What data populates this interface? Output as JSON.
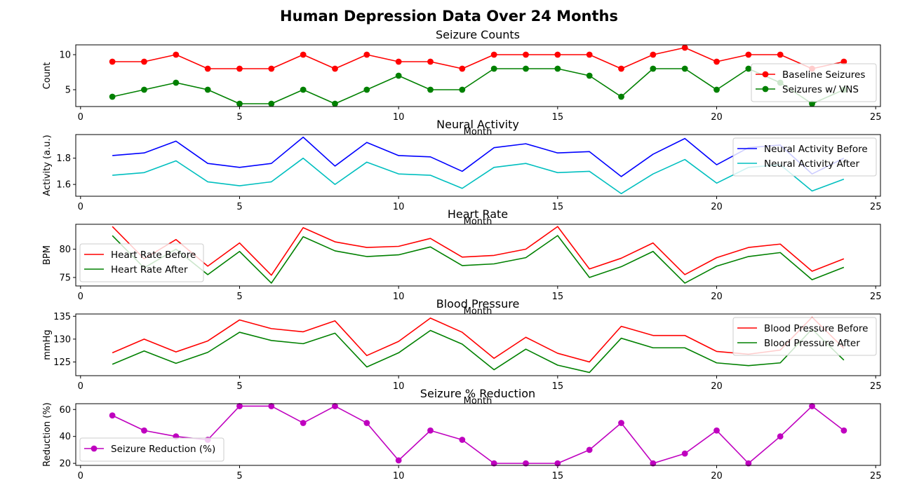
{
  "figure": {
    "title": "Human Depression Data Over 24 Months"
  },
  "chart_data": [
    {
      "type": "line",
      "title": "Seizure Counts",
      "xlabel": "Month",
      "ylabel": "Count",
      "xlim": [
        -0.15,
        25.15
      ],
      "ylim": [
        2.6,
        11.4
      ],
      "xticks": [
        0,
        5,
        10,
        15,
        20,
        25
      ],
      "yticks": [
        5,
        10
      ],
      "legend": "right",
      "x": [
        1,
        2,
        3,
        4,
        5,
        6,
        7,
        8,
        9,
        10,
        11,
        12,
        13,
        14,
        15,
        16,
        17,
        18,
        19,
        20,
        21,
        22,
        23,
        24
      ],
      "series": [
        {
          "name": "Baseline Seizures",
          "color": "#ff0000",
          "marker": "circle",
          "values": [
            9,
            9,
            10,
            8,
            8,
            8,
            10,
            8,
            10,
            9,
            9,
            8,
            10,
            10,
            10,
            10,
            8,
            10,
            11,
            9,
            10,
            10,
            8,
            9
          ]
        },
        {
          "name": "Seizures w/ VNS",
          "color": "#008000",
          "marker": "circle",
          "values": [
            4,
            5,
            6,
            5,
            3,
            3,
            5,
            3,
            5,
            7,
            5,
            5,
            8,
            8,
            8,
            7,
            4,
            8,
            8,
            5,
            8,
            6,
            3,
            5
          ]
        }
      ]
    },
    {
      "type": "line",
      "title": "Neural Activity",
      "xlabel": "Month",
      "ylabel": "Activity (a.u.)",
      "xlim": [
        -0.15,
        25.15
      ],
      "ylim": [
        1.51,
        1.98
      ],
      "xticks": [
        0,
        5,
        10,
        15,
        20,
        25
      ],
      "yticks": [
        1.6,
        1.8
      ],
      "legend": "top-right",
      "x": [
        1,
        2,
        3,
        4,
        5,
        6,
        7,
        8,
        9,
        10,
        11,
        12,
        13,
        14,
        15,
        16,
        17,
        18,
        19,
        20,
        21,
        22,
        23,
        24
      ],
      "series": [
        {
          "name": "Neural Activity Before",
          "color": "#0000ff",
          "marker": "none",
          "values": [
            1.82,
            1.84,
            1.93,
            1.76,
            1.73,
            1.76,
            1.96,
            1.74,
            1.92,
            1.82,
            1.81,
            1.7,
            1.88,
            1.91,
            1.84,
            1.85,
            1.66,
            1.83,
            1.95,
            1.75,
            1.88,
            1.9,
            1.68,
            1.8
          ]
        },
        {
          "name": "Neural Activity After",
          "color": "#00bfbf",
          "marker": "none",
          "values": [
            1.67,
            1.69,
            1.78,
            1.62,
            1.59,
            1.62,
            1.8,
            1.6,
            1.77,
            1.68,
            1.67,
            1.57,
            1.73,
            1.76,
            1.69,
            1.7,
            1.53,
            1.68,
            1.79,
            1.61,
            1.73,
            1.75,
            1.55,
            1.64
          ]
        }
      ]
    },
    {
      "type": "line",
      "title": "Heart Rate",
      "xlabel": "Month",
      "ylabel": "BPM",
      "xlim": [
        -0.15,
        25.15
      ],
      "ylim": [
        73.5,
        84.4
      ],
      "xticks": [
        0,
        5,
        10,
        15,
        20,
        25
      ],
      "yticks": [
        75,
        80
      ],
      "legend": "left",
      "x": [
        1,
        2,
        3,
        4,
        5,
        6,
        7,
        8,
        9,
        10,
        11,
        12,
        13,
        14,
        15,
        16,
        17,
        18,
        19,
        20,
        21,
        22,
        23,
        24
      ],
      "series": [
        {
          "name": "Heart Rate Before",
          "color": "#ff0000",
          "marker": "none",
          "values": [
            84.0,
            78.3,
            81.7,
            77.0,
            81.1,
            75.4,
            83.8,
            81.3,
            80.3,
            80.5,
            81.9,
            78.6,
            78.9,
            80.0,
            84.0,
            76.5,
            78.4,
            81.1,
            75.5,
            78.5,
            80.3,
            80.9,
            76.1,
            78.3
          ]
        },
        {
          "name": "Heart Rate After",
          "color": "#008000",
          "marker": "none",
          "values": [
            82.4,
            76.7,
            80.0,
            75.5,
            79.6,
            74.0,
            82.2,
            79.7,
            78.7,
            79.0,
            80.4,
            77.1,
            77.4,
            78.5,
            82.4,
            75.0,
            76.9,
            79.6,
            74.0,
            77.0,
            78.7,
            79.4,
            74.6,
            76.8
          ]
        }
      ]
    },
    {
      "type": "line",
      "title": "Blood Pressure",
      "xlabel": "Month",
      "ylabel": "mmHg",
      "xlim": [
        -0.15,
        25.15
      ],
      "ylim": [
        122.0,
        135.5
      ],
      "xticks": [
        0,
        5,
        10,
        15,
        20,
        25
      ],
      "yticks": [
        125,
        130,
        135
      ],
      "legend": "top-right",
      "x": [
        1,
        2,
        3,
        4,
        5,
        6,
        7,
        8,
        9,
        10,
        11,
        12,
        13,
        14,
        15,
        16,
        17,
        18,
        19,
        20,
        21,
        22,
        23,
        24
      ],
      "series": [
        {
          "name": "Blood Pressure Before",
          "color": "#ff0000",
          "marker": "none",
          "values": [
            127.0,
            130.0,
            127.2,
            129.6,
            134.2,
            132.3,
            131.6,
            134.0,
            126.4,
            129.5,
            134.6,
            131.5,
            125.8,
            130.4,
            126.9,
            125.0,
            132.8,
            130.8,
            130.8,
            127.3,
            126.7,
            127.6,
            134.8,
            128.0
          ]
        },
        {
          "name": "Blood Pressure After",
          "color": "#008000",
          "marker": "none",
          "values": [
            124.5,
            127.4,
            124.7,
            127.1,
            131.5,
            129.7,
            129.0,
            131.3,
            123.9,
            127.0,
            131.9,
            128.9,
            123.3,
            127.8,
            124.3,
            122.7,
            130.2,
            128.1,
            128.1,
            124.8,
            124.2,
            124.8,
            132.2,
            125.4
          ]
        }
      ]
    },
    {
      "type": "line",
      "title": "Seizure % Reduction",
      "xlabel": "",
      "ylabel": "Reduction (%)",
      "xlim": [
        -0.15,
        25.15
      ],
      "ylim": [
        18.5,
        64.3
      ],
      "xticks": [
        0,
        5,
        10,
        15,
        20,
        25
      ],
      "yticks": [
        20,
        40,
        60
      ],
      "legend": "left",
      "x": [
        1,
        2,
        3,
        4,
        5,
        6,
        7,
        8,
        9,
        10,
        11,
        12,
        13,
        14,
        15,
        16,
        17,
        18,
        19,
        20,
        21,
        22,
        23,
        24
      ],
      "series": [
        {
          "name": "Seizure Reduction (%)",
          "color": "#bf00bf",
          "marker": "circle",
          "values": [
            55.6,
            44.4,
            40.0,
            37.5,
            62.5,
            62.5,
            50.0,
            62.5,
            50.0,
            22.2,
            44.4,
            37.5,
            20.0,
            20.0,
            20.0,
            30.0,
            50.0,
            20.0,
            27.3,
            44.4,
            20.0,
            40.0,
            62.5,
            44.4
          ]
        }
      ]
    }
  ]
}
